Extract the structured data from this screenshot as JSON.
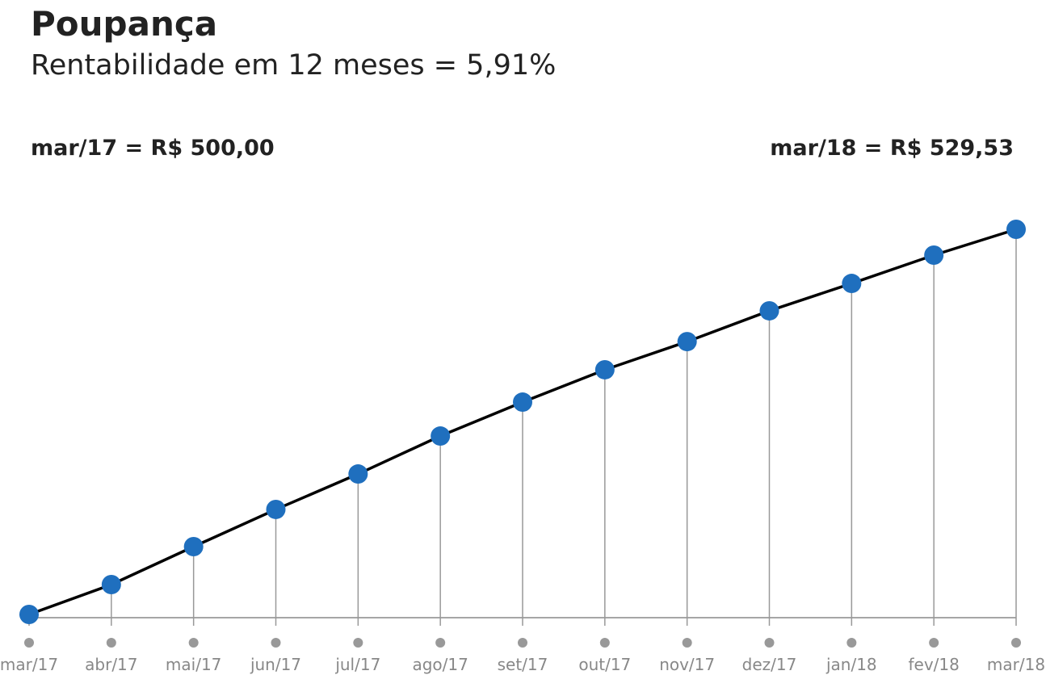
{
  "chart_data": {
    "type": "line",
    "title": "Poupança",
    "subtitle": "Rentabilidade em 12 meses = 5,91%",
    "annotations": [
      "mar/17 = R$ 500,00",
      "mar/18 = R$ 529,53"
    ],
    "categories": [
      "mar/17",
      "abr/17",
      "mai/17",
      "jun/17",
      "jul/17",
      "ago/17",
      "set/17",
      "out/17",
      "nov/17",
      "dez/17",
      "jan/18",
      "fev/18",
      "mar/18"
    ],
    "values": [
      500,
      502.29,
      505.2,
      508.05,
      510.77,
      513.68,
      516.28,
      518.76,
      520.92,
      523.28,
      525.38,
      527.55,
      529.53
    ],
    "color": "#1f6fbe",
    "line_color": "#000000"
  }
}
